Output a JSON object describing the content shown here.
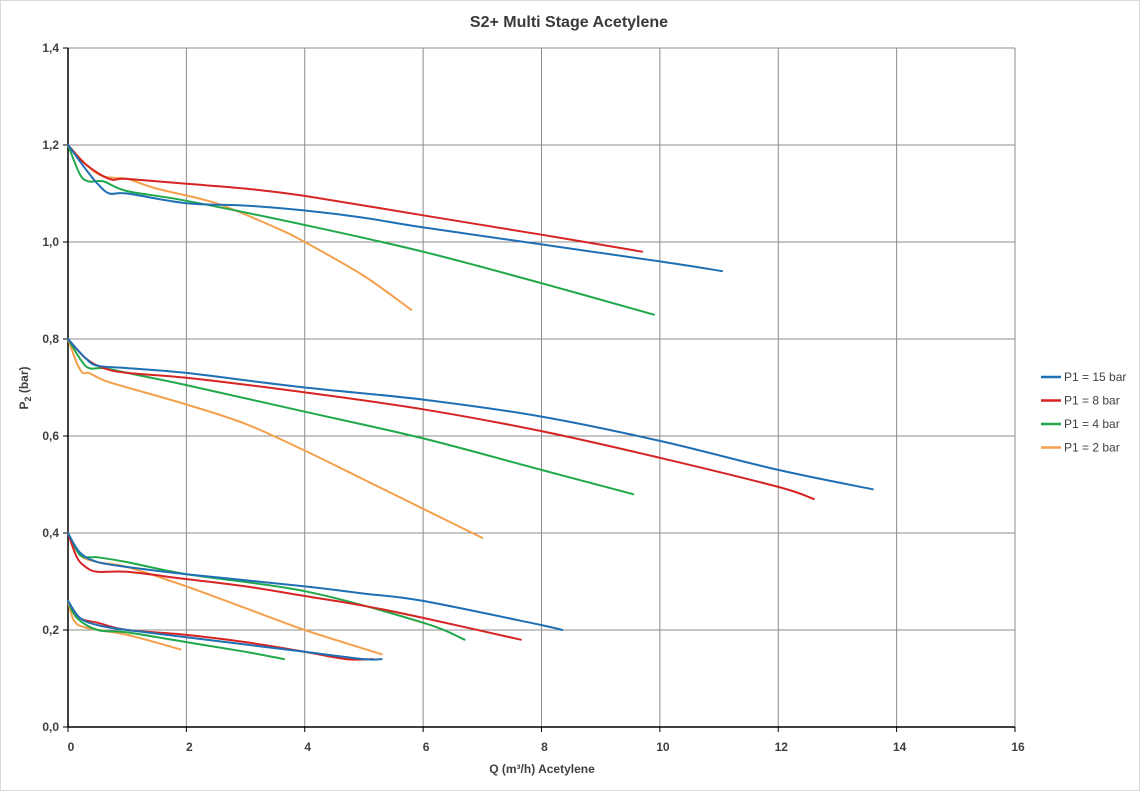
{
  "chart_data": {
    "type": "line",
    "title": "S2+ Multi Stage Acetylene",
    "xlabel": "Q (m³/h) Acetylene",
    "ylabel_main": "P",
    "ylabel_sub": "2",
    "ylabel_unit": " (bar)",
    "xlim": [
      0,
      16
    ],
    "ylim": [
      0,
      1.4
    ],
    "x_ticks": [
      "0",
      "2",
      "4",
      "6",
      "8",
      "10",
      "12",
      "14",
      "16"
    ],
    "y_ticks": [
      "0,0",
      "0,2",
      "0,4",
      "0,6",
      "0,8",
      "1,0",
      "1,2",
      "1,4"
    ],
    "grid": true,
    "legend_position": "right",
    "series": [
      {
        "name": "P1 = 15 bar",
        "color": "#1f6fb4",
        "curves": [
          [
            [
              0,
              1.2
            ],
            [
              0.3,
              1.15
            ],
            [
              0.5,
              1.12
            ],
            [
              0.7,
              1.1
            ],
            [
              1,
              1.1
            ],
            [
              2,
              1.08
            ],
            [
              3,
              1.075
            ],
            [
              4,
              1.065
            ],
            [
              5,
              1.05
            ],
            [
              6,
              1.03
            ],
            [
              8,
              0.995
            ],
            [
              10,
              0.96
            ],
            [
              11.05,
              0.94
            ]
          ],
          [
            [
              0,
              0.8
            ],
            [
              0.3,
              0.76
            ],
            [
              0.5,
              0.745
            ],
            [
              1,
              0.74
            ],
            [
              2,
              0.73
            ],
            [
              4,
              0.7
            ],
            [
              6,
              0.675
            ],
            [
              8,
              0.64
            ],
            [
              10,
              0.59
            ],
            [
              12,
              0.53
            ],
            [
              13.6,
              0.49
            ]
          ],
          [
            [
              0,
              0.4
            ],
            [
              0.2,
              0.36
            ],
            [
              0.5,
              0.34
            ],
            [
              1,
              0.33
            ],
            [
              2,
              0.315
            ],
            [
              4,
              0.29
            ],
            [
              5,
              0.275
            ],
            [
              6,
              0.26
            ],
            [
              8,
              0.21
            ],
            [
              8.35,
              0.2
            ]
          ],
          [
            [
              0,
              0.26
            ],
            [
              0.2,
              0.225
            ],
            [
              0.5,
              0.21
            ],
            [
              1,
              0.2
            ],
            [
              2,
              0.185
            ],
            [
              3,
              0.17
            ],
            [
              4,
              0.155
            ],
            [
              5,
              0.14
            ],
            [
              5.3,
              0.14
            ]
          ]
        ]
      },
      {
        "name": "P1 = 8 bar",
        "color": "#d62424",
        "curves": [
          [
            [
              0,
              1.2
            ],
            [
              0.3,
              1.16
            ],
            [
              0.7,
              1.13
            ],
            [
              1,
              1.13
            ],
            [
              2,
              1.12
            ],
            [
              3,
              1.11
            ],
            [
              4,
              1.095
            ],
            [
              6,
              1.055
            ],
            [
              8,
              1.015
            ],
            [
              9.7,
              0.98
            ]
          ],
          [
            [
              0,
              0.8
            ],
            [
              0.3,
              0.76
            ],
            [
              0.6,
              0.74
            ],
            [
              1,
              0.73
            ],
            [
              2,
              0.72
            ],
            [
              4,
              0.69
            ],
            [
              6,
              0.655
            ],
            [
              8,
              0.61
            ],
            [
              10,
              0.555
            ],
            [
              12,
              0.495
            ],
            [
              12.6,
              0.47
            ]
          ],
          [
            [
              0,
              0.4
            ],
            [
              0.15,
              0.35
            ],
            [
              0.3,
              0.33
            ],
            [
              0.5,
              0.32
            ],
            [
              1,
              0.32
            ],
            [
              2,
              0.305
            ],
            [
              3,
              0.29
            ],
            [
              4,
              0.27
            ],
            [
              5,
              0.25
            ],
            [
              6,
              0.225
            ],
            [
              7.65,
              0.18
            ]
          ],
          [
            [
              0,
              0.26
            ],
            [
              0.2,
              0.225
            ],
            [
              0.5,
              0.215
            ],
            [
              1,
              0.2
            ],
            [
              2,
              0.19
            ],
            [
              3,
              0.175
            ],
            [
              4,
              0.155
            ],
            [
              4.7,
              0.14
            ],
            [
              5.15,
              0.14
            ]
          ]
        ]
      },
      {
        "name": "P1 = 4 bar",
        "color": "#20a84a",
        "curves": [
          [
            [
              0,
              1.2
            ],
            [
              0.2,
              1.14
            ],
            [
              0.35,
              1.125
            ],
            [
              0.6,
              1.125
            ],
            [
              1,
              1.105
            ],
            [
              2,
              1.085
            ],
            [
              4,
              1.035
            ],
            [
              6,
              0.98
            ],
            [
              8,
              0.915
            ],
            [
              9.9,
              0.85
            ]
          ],
          [
            [
              0,
              0.8
            ],
            [
              0.2,
              0.76
            ],
            [
              0.35,
              0.74
            ],
            [
              0.6,
              0.74
            ],
            [
              1,
              0.73
            ],
            [
              2,
              0.705
            ],
            [
              4,
              0.65
            ],
            [
              6,
              0.595
            ],
            [
              8,
              0.53
            ],
            [
              9.55,
              0.48
            ]
          ],
          [
            [
              0,
              0.4
            ],
            [
              0.2,
              0.355
            ],
            [
              0.4,
              0.35
            ],
            [
              0.5,
              0.35
            ],
            [
              1,
              0.34
            ],
            [
              2,
              0.315
            ],
            [
              4,
              0.28
            ],
            [
              6,
              0.215
            ],
            [
              6.7,
              0.18
            ]
          ],
          [
            [
              0,
              0.26
            ],
            [
              0.15,
              0.225
            ],
            [
              0.5,
              0.2
            ],
            [
              1,
              0.195
            ],
            [
              2,
              0.175
            ],
            [
              3,
              0.155
            ],
            [
              3.65,
              0.14
            ]
          ]
        ]
      },
      {
        "name": "P1 = 2 bar",
        "color": "#f4a04c",
        "curves": [
          [
            [
              0,
              1.2
            ],
            [
              0.3,
              1.16
            ],
            [
              0.6,
              1.135
            ],
            [
              1,
              1.13
            ],
            [
              1.5,
              1.11
            ],
            [
              2.5,
              1.08
            ],
            [
              3.5,
              1.03
            ],
            [
              4,
              1
            ],
            [
              5,
              0.93
            ],
            [
              5.8,
              0.86
            ]
          ],
          [
            [
              0,
              0.8
            ],
            [
              0.15,
              0.75
            ],
            [
              0.25,
              0.73
            ],
            [
              0.35,
              0.73
            ],
            [
              0.6,
              0.715
            ],
            [
              1,
              0.7
            ],
            [
              2,
              0.665
            ],
            [
              3,
              0.625
            ],
            [
              4,
              0.57
            ],
            [
              5,
              0.51
            ],
            [
              6,
              0.45
            ],
            [
              7,
              0.39
            ]
          ],
          [
            [
              0,
              0.4
            ],
            [
              0.2,
              0.355
            ],
            [
              0.5,
              0.34
            ],
            [
              1,
              0.33
            ],
            [
              2,
              0.29
            ],
            [
              3,
              0.245
            ],
            [
              4,
              0.2
            ],
            [
              5.3,
              0.15
            ]
          ],
          [
            [
              0,
              0.26
            ],
            [
              0.1,
              0.22
            ],
            [
              0.3,
              0.205
            ],
            [
              1,
              0.19
            ],
            [
              1.9,
              0.16
            ]
          ]
        ]
      }
    ]
  }
}
